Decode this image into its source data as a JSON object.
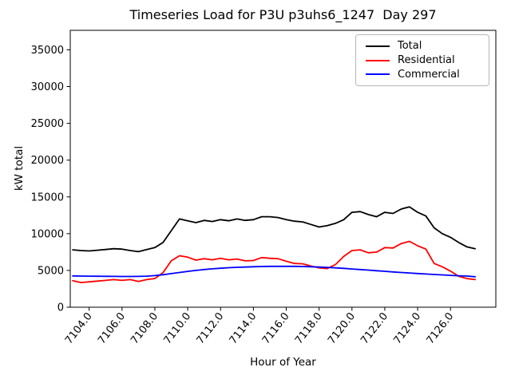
{
  "figure": {
    "title": "Timeseries Load for P3U p3uhs6_1247  Day 297",
    "xlabel": "Hour of Year",
    "ylabel": "kW total"
  },
  "legend": {
    "items": [
      {
        "label": "Total",
        "color": "#000000"
      },
      {
        "label": "Residential",
        "color": "#ff0000"
      },
      {
        "label": "Commercial",
        "color": "#0000ff"
      }
    ]
  },
  "chart_data": {
    "type": "line",
    "title": "Timeseries Load for P3U p3uhs6_1247  Day 297",
    "xlabel": "Hour of Year",
    "ylabel": "kW total",
    "grid": false,
    "legend_position": "upper right",
    "xlim": [
      7102.85,
      7128.76
    ],
    "ylim": [
      0,
      37650
    ],
    "xticks": {
      "values": [
        7104,
        7106,
        7108,
        7110,
        7112,
        7114,
        7116,
        7118,
        7120,
        7122,
        7124,
        7126
      ],
      "labels": [
        "7104.0",
        "7106.0",
        "7108.0",
        "7110.0",
        "7112.0",
        "7114.0",
        "7116.0",
        "7118.0",
        "7120.0",
        "7122.0",
        "7124.0",
        "7126.0"
      ]
    },
    "yticks": {
      "values": [
        0,
        5000,
        10000,
        15000,
        20000,
        25000,
        30000,
        35000
      ],
      "labels": [
        "0",
        "5000",
        "10000",
        "15000",
        "20000",
        "25000",
        "30000",
        "35000"
      ]
    },
    "x": [
      7103.0,
      7103.5,
      7104.0,
      7104.5,
      7105.0,
      7105.5,
      7106.0,
      7106.5,
      7107.0,
      7107.5,
      7108.0,
      7108.5,
      7109.0,
      7109.5,
      7110.0,
      7110.5,
      7111.0,
      7111.5,
      7112.0,
      7112.5,
      7113.0,
      7113.5,
      7114.0,
      7114.5,
      7115.0,
      7115.5,
      7116.0,
      7116.5,
      7117.0,
      7117.5,
      7118.0,
      7118.5,
      7119.0,
      7119.5,
      7120.0,
      7120.5,
      7121.0,
      7121.5,
      7122.0,
      7122.5,
      7123.0,
      7123.5,
      7124.0,
      7124.5,
      7125.0,
      7125.5,
      7126.0,
      7126.5,
      7127.0,
      7127.5
    ],
    "series": [
      {
        "name": "Total",
        "color": "#000000",
        "values": [
          7800,
          7700,
          7650,
          7750,
          7850,
          7950,
          7900,
          7700,
          7550,
          7850,
          8100,
          8800,
          10400,
          12000,
          11750,
          11500,
          11800,
          11650,
          11900,
          11750,
          12000,
          11800,
          11900,
          12300,
          12300,
          12200,
          11900,
          11700,
          11600,
          11250,
          10900,
          11100,
          11400,
          11900,
          12900,
          13000,
          12600,
          12300,
          12900,
          12750,
          13350,
          13650,
          12900,
          12400,
          10800,
          10000,
          9500,
          8800,
          8200,
          7950
        ]
      },
      {
        "name": "Residential",
        "color": "#ff0000",
        "values": [
          3600,
          3350,
          3450,
          3550,
          3650,
          3750,
          3650,
          3750,
          3500,
          3750,
          3900,
          4700,
          6300,
          7000,
          6800,
          6400,
          6600,
          6450,
          6650,
          6450,
          6550,
          6300,
          6350,
          6750,
          6650,
          6600,
          6250,
          5950,
          5900,
          5600,
          5350,
          5250,
          5800,
          6900,
          7700,
          7800,
          7400,
          7500,
          8100,
          8050,
          8650,
          8950,
          8350,
          7900,
          5950,
          5500,
          4900,
          4200,
          3900,
          3750
        ]
      },
      {
        "name": "Commercial",
        "color": "#0000ff",
        "values": [
          4250,
          4230,
          4220,
          4210,
          4200,
          4190,
          4180,
          4180,
          4190,
          4220,
          4300,
          4420,
          4570,
          4720,
          4870,
          5000,
          5120,
          5220,
          5300,
          5370,
          5420,
          5460,
          5500,
          5530,
          5550,
          5560,
          5560,
          5550,
          5530,
          5500,
          5460,
          5410,
          5350,
          5280,
          5200,
          5120,
          5040,
          4960,
          4880,
          4800,
          4720,
          4650,
          4580,
          4510,
          4450,
          4390,
          4330,
          4280,
          4230,
          4150
        ]
      }
    ]
  }
}
